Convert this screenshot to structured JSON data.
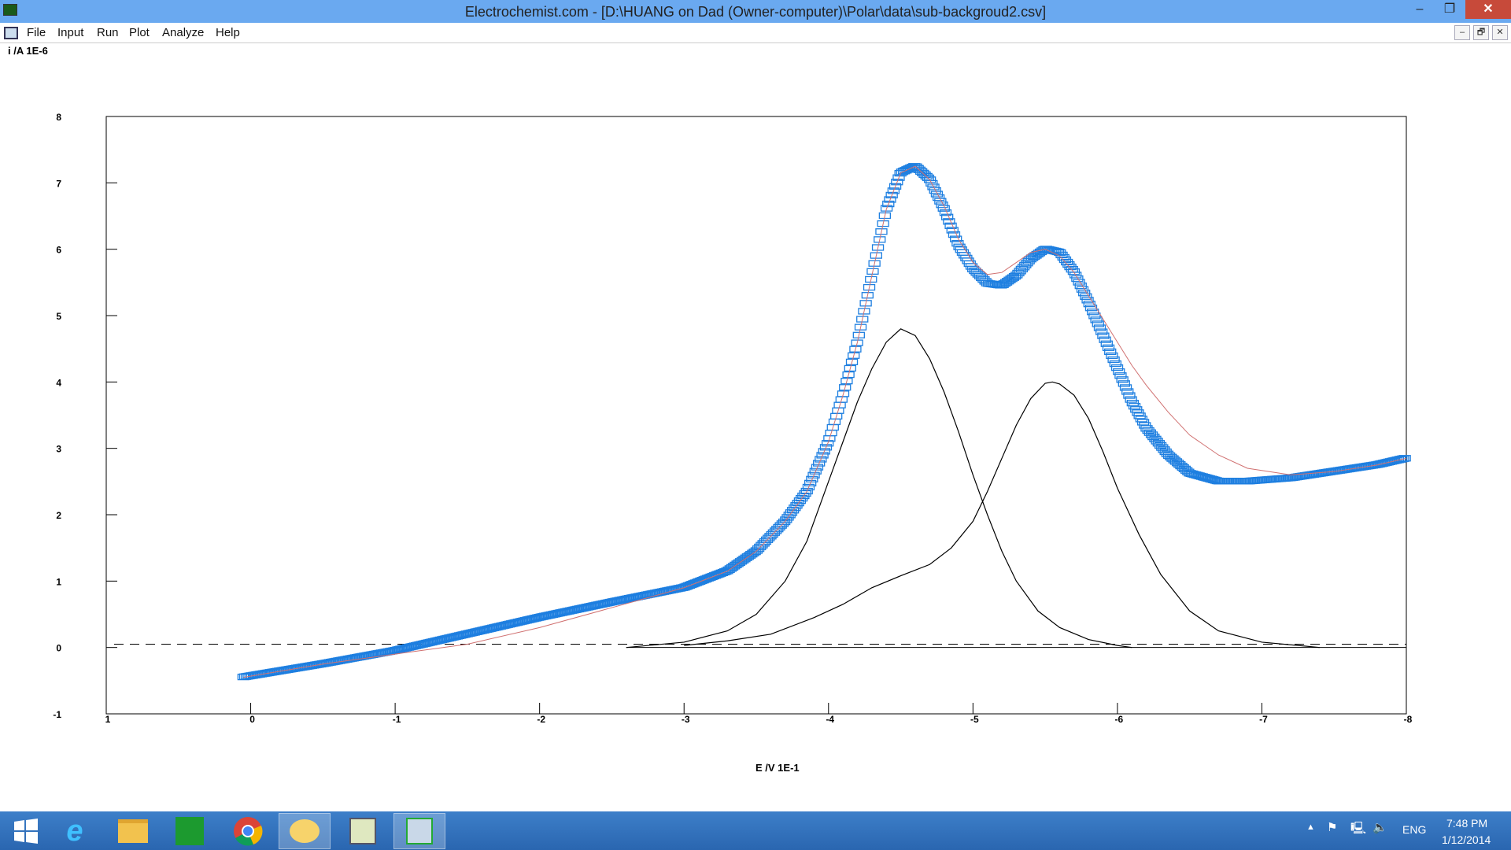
{
  "window": {
    "title": "Electrochemist.com - [D:\\HUANG on Dad (Owner-computer)\\Polar\\data\\sub-backgroud2.csv]",
    "minimize": "–",
    "restore": "❐",
    "close": "✕"
  },
  "menu": [
    "File",
    "Input",
    "Run",
    "Plot",
    "Analyze",
    "Help"
  ],
  "mdi_buttons": [
    "–",
    "🗗",
    "✕"
  ],
  "chart_data": {
    "type": "line",
    "xlabel": "E /V 1E-1",
    "ylabel": "i /A 1E-6",
    "xlim": [
      1,
      -8
    ],
    "ylim": [
      -1,
      8
    ],
    "xticks": [
      1,
      0,
      -1,
      -2,
      -3,
      -4,
      -5,
      -6,
      -7,
      -8
    ],
    "yticks": [
      8,
      7,
      6,
      5,
      4,
      3,
      2,
      1,
      0,
      -1
    ],
    "grid": false,
    "colors": {
      "measured": "#1e7fe0",
      "fit": "#d07070",
      "peaks": "#000000"
    },
    "series": [
      {
        "style": "square-markers",
        "x": [
          0.05,
          -0.5,
          -1,
          -1.5,
          -2,
          -2.5,
          -3,
          -3.3,
          -3.5,
          -3.7,
          -3.85,
          -4,
          -4.1,
          -4.2,
          -4.3,
          -4.4,
          -4.5,
          -4.6,
          -4.7,
          -4.8,
          -4.9,
          -5,
          -5.1,
          -5.2,
          -5.3,
          -5.4,
          -5.5,
          -5.6,
          -5.7,
          -5.8,
          -5.9,
          -6,
          -6.1,
          -6.2,
          -6.35,
          -6.5,
          -6.7,
          -6.9,
          -7.2,
          -7.5,
          -7.8,
          -8
        ],
        "y": [
          -0.45,
          -0.25,
          -0.05,
          0.2,
          0.45,
          0.68,
          0.9,
          1.15,
          1.45,
          1.9,
          2.35,
          3.1,
          3.8,
          4.6,
          5.6,
          6.6,
          7.15,
          7.25,
          7.05,
          6.6,
          6.05,
          5.7,
          5.48,
          5.45,
          5.6,
          5.85,
          6.0,
          5.95,
          5.65,
          5.2,
          4.7,
          4.2,
          3.7,
          3.3,
          2.9,
          2.62,
          2.5,
          2.5,
          2.55,
          2.65,
          2.75,
          2.85
        ]
      },
      {
        "style": "thin-line",
        "x": [
          0.05,
          -0.5,
          -1,
          -1.5,
          -2,
          -2.5,
          -3,
          -3.3,
          -3.5,
          -3.7,
          -3.85,
          -4,
          -4.1,
          -4.2,
          -4.3,
          -4.4,
          -4.5,
          -4.6,
          -4.7,
          -4.8,
          -4.9,
          -5,
          -5.1,
          -5.2,
          -5.3,
          -5.4,
          -5.5,
          -5.6,
          -5.7,
          -5.8,
          -5.9,
          -6,
          -6.1,
          -6.2,
          -6.35,
          -6.5,
          -6.7,
          -6.9,
          -7.2,
          -7.5,
          -7.8,
          -8
        ],
        "y": [
          -0.45,
          -0.25,
          -0.1,
          0.05,
          0.3,
          0.6,
          0.9,
          1.15,
          1.45,
          1.9,
          2.35,
          3.1,
          3.8,
          4.6,
          5.6,
          6.6,
          7.15,
          7.25,
          7.05,
          6.65,
          6.15,
          5.8,
          5.62,
          5.65,
          5.8,
          5.95,
          6.0,
          5.9,
          5.65,
          5.3,
          4.95,
          4.6,
          4.25,
          3.95,
          3.55,
          3.2,
          2.9,
          2.7,
          2.6,
          2.65,
          2.75,
          2.85
        ]
      },
      {
        "style": "black-line",
        "x": [
          -2.6,
          -3,
          -3.3,
          -3.5,
          -3.7,
          -3.85,
          -4,
          -4.1,
          -4.2,
          -4.3,
          -4.4,
          -4.5,
          -4.6,
          -4.7,
          -4.8,
          -4.9,
          -5,
          -5.1,
          -5.2,
          -5.3,
          -5.45,
          -5.6,
          -5.8,
          -6,
          -6.1
        ],
        "y": [
          0,
          0.08,
          0.25,
          0.5,
          1.0,
          1.6,
          2.5,
          3.1,
          3.7,
          4.2,
          4.6,
          4.8,
          4.7,
          4.35,
          3.85,
          3.25,
          2.6,
          2.0,
          1.45,
          1.0,
          0.55,
          0.3,
          0.12,
          0.03,
          0
        ]
      },
      {
        "style": "black-line",
        "x": [
          -3,
          -3.3,
          -3.6,
          -3.9,
          -4.1,
          -4.3,
          -4.5,
          -4.7,
          -4.85,
          -5,
          -5.1,
          -5.2,
          -5.3,
          -5.4,
          -5.5,
          -5.55,
          -5.6,
          -5.7,
          -5.8,
          -5.9,
          -6,
          -6.15,
          -6.3,
          -6.5,
          -6.7,
          -7,
          -7.4
        ],
        "y": [
          0.03,
          0.1,
          0.2,
          0.45,
          0.65,
          0.9,
          1.08,
          1.25,
          1.5,
          1.9,
          2.35,
          2.85,
          3.35,
          3.75,
          3.98,
          4.0,
          3.97,
          3.8,
          3.45,
          2.95,
          2.4,
          1.7,
          1.1,
          0.55,
          0.25,
          0.08,
          0
        ]
      }
    ],
    "baselines": [
      {
        "style": "dashed",
        "y": 0.05
      },
      {
        "style": "solid",
        "y": 0,
        "x": [
          -2.6,
          -8
        ]
      }
    ]
  },
  "taskbar": {
    "items": [
      "start",
      "internet-explorer",
      "file-explorer",
      "store",
      "chrome",
      "outlook",
      "notepad-app",
      "electrochemist-app"
    ],
    "active": "electrochemist-app",
    "tray": {
      "language": "ENG",
      "time": "7:48 PM",
      "date": "1/12/2014"
    }
  }
}
